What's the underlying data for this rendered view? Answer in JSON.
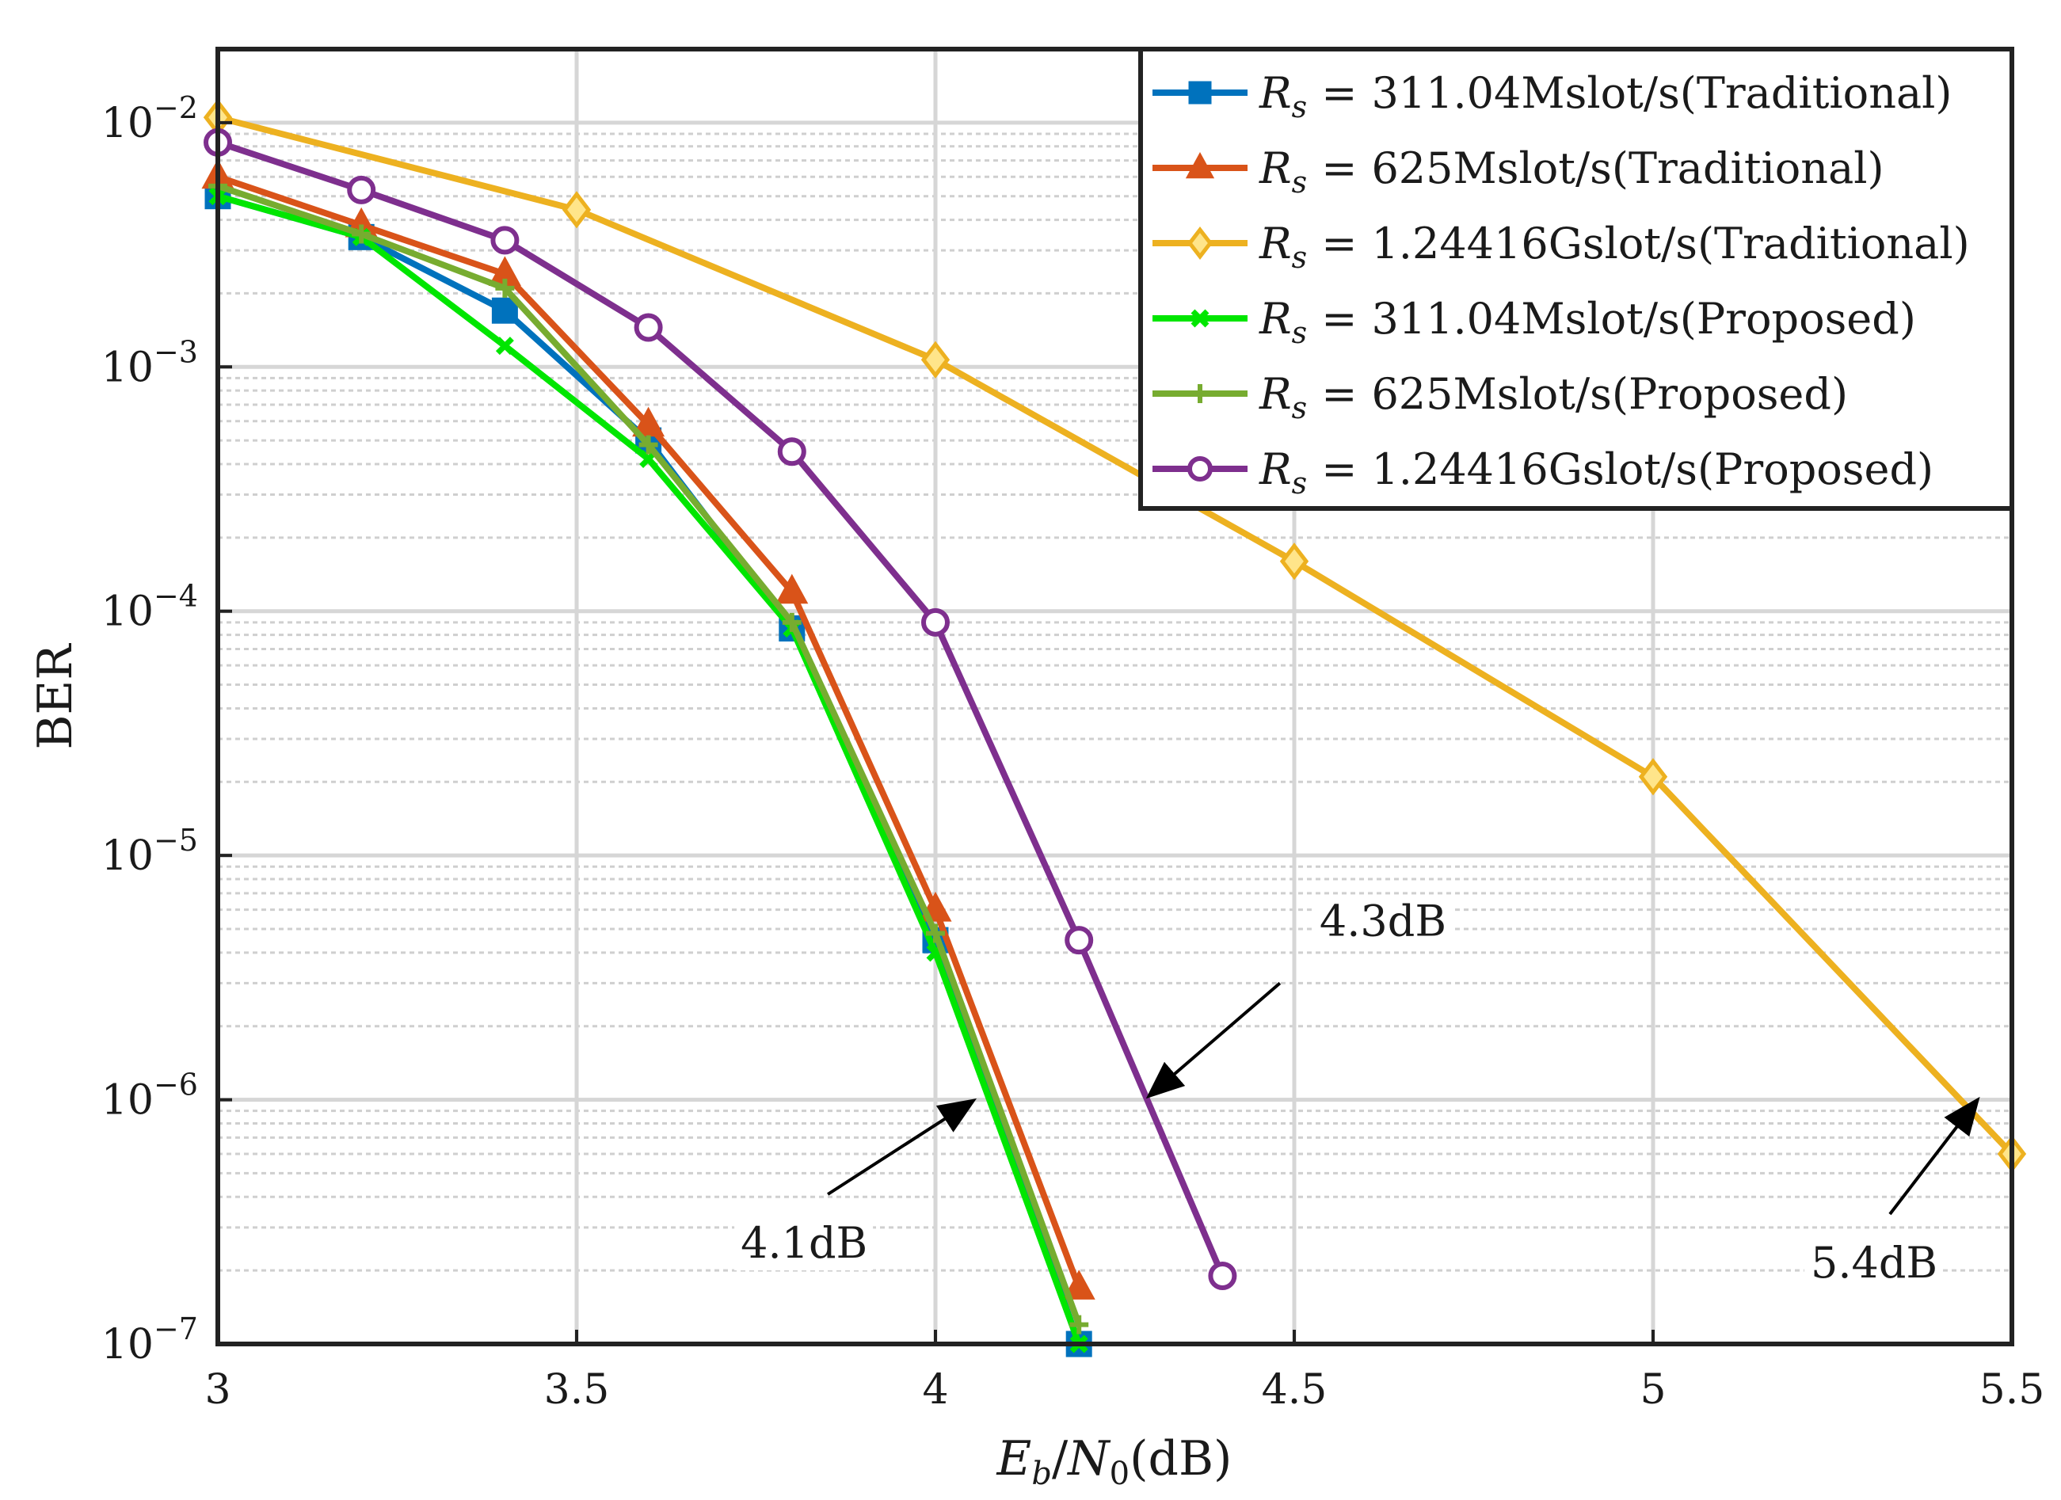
{
  "chart_data": {
    "type": "line",
    "yscale": "log",
    "xlabel": "E_b/N_0(dB)",
    "xlabel_parts": {
      "e": "E",
      "b": "b",
      "slash": "/",
      "n": "N",
      "zero": "0",
      "unit": "(dB)"
    },
    "ylabel": "BER",
    "xlim": [
      3,
      5.5
    ],
    "ylim": [
      1e-07,
      0.02
    ],
    "grid": true,
    "legend_position": "top-right",
    "x_ticks": [
      {
        "value": 3,
        "label": "3"
      },
      {
        "value": 3.5,
        "label": "3.5"
      },
      {
        "value": 4,
        "label": "4"
      },
      {
        "value": 4.5,
        "label": "4.5"
      },
      {
        "value": 5,
        "label": "5"
      },
      {
        "value": 5.5,
        "label": "5.5"
      }
    ],
    "y_ticks": [
      {
        "value": 0.01,
        "base": "10",
        "exp": "−2"
      },
      {
        "value": 0.001,
        "base": "10",
        "exp": "−3"
      },
      {
        "value": 0.0001,
        "base": "10",
        "exp": "−4"
      },
      {
        "value": 1e-05,
        "base": "10",
        "exp": "−5"
      },
      {
        "value": 1e-06,
        "base": "10",
        "exp": "−6"
      },
      {
        "value": 1e-07,
        "base": "10",
        "exp": "−7"
      }
    ],
    "legend_prefix": {
      "r": "R",
      "sub": "s",
      "eq": "="
    },
    "series": [
      {
        "name": "Rs = 311.04Mslot/s(Traditional)",
        "legend_rest": "311.04Mslot/s(Traditional)",
        "color": "#0072BD",
        "marker": "square",
        "x": [
          3,
          3.2,
          3.4,
          3.6,
          3.8,
          4,
          4.2
        ],
        "y": [
          0.005,
          0.0034,
          0.0017,
          0.0005,
          8.5e-05,
          4.5e-06,
          1e-07
        ]
      },
      {
        "name": "Rs = 625Mslot/s(Traditional)",
        "legend_rest": "625Mslot/s(Traditional)",
        "color": "#D95319",
        "marker": "triangle",
        "x": [
          3,
          3.2,
          3.4,
          3.6,
          3.8,
          4,
          4.2
        ],
        "y": [
          0.006,
          0.0038,
          0.0024,
          0.00058,
          0.00012,
          6e-06,
          1.7e-07
        ]
      },
      {
        "name": "Rs = 1.24416Gslot/s(Traditional)",
        "legend_rest": "1.24416Gslot/s(Traditional)",
        "color": "#EDB120",
        "marker": "diamond",
        "x": [
          3,
          3.5,
          4,
          4.5,
          5,
          5.5
        ],
        "y": [
          0.0105,
          0.0044,
          0.00107,
          0.00016,
          2.1e-05,
          6e-07
        ]
      },
      {
        "name": "Rs = 311.04Mslot/s(Proposed)",
        "legend_rest": "311.04Mslot/s(Proposed)",
        "color": "#00E600",
        "marker": "x",
        "x": [
          3,
          3.2,
          3.4,
          3.6,
          3.8,
          4,
          4.2
        ],
        "y": [
          0.005,
          0.0034,
          0.00122,
          0.00042,
          8.5e-05,
          4e-06,
          1e-07
        ]
      },
      {
        "name": "Rs = 625Mslot/s(Proposed)",
        "legend_rest": "625Mslot/s(Proposed)",
        "color": "#77AC30",
        "marker": "plus",
        "x": [
          3,
          3.2,
          3.4,
          3.6,
          3.8,
          4,
          4.2
        ],
        "y": [
          0.0055,
          0.0035,
          0.0021,
          0.00048,
          9e-05,
          4.8e-06,
          1.2e-07
        ]
      },
      {
        "name": "Rs = 1.24416Gslot/s(Proposed)",
        "legend_rest": "1.24416Gslot/s(Proposed)",
        "color": "#7E2F8E",
        "marker": "circle",
        "x": [
          3,
          3.2,
          3.4,
          3.6,
          3.8,
          4,
          4.2,
          4.4
        ],
        "y": [
          0.0083,
          0.0053,
          0.0033,
          0.00145,
          0.00045,
          9e-05,
          4.5e-06,
          1.9e-07
        ]
      }
    ],
    "annotations": [
      {
        "text": "4.1dB",
        "arrow_from": [
          3.85,
          4.1e-07
        ],
        "arrow_to": [
          4.05,
          9.8e-07
        ]
      },
      {
        "text": "4.3dB",
        "arrow_from": [
          4.48,
          3e-06
        ],
        "arrow_to": [
          4.3,
          1.05e-06
        ]
      },
      {
        "text": "5.4dB",
        "arrow_from": [
          5.33,
          3.4e-07
        ],
        "arrow_to": [
          5.45,
          9.8e-07
        ]
      }
    ]
  }
}
